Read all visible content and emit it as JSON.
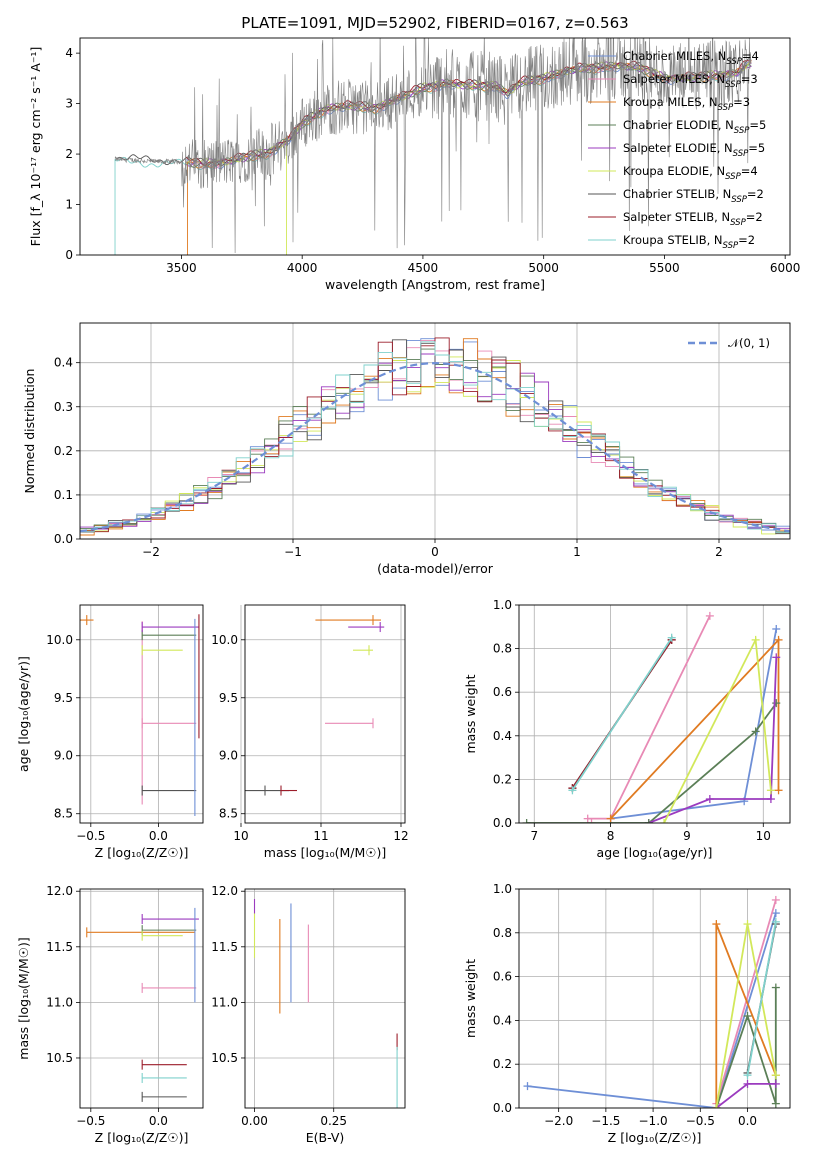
{
  "title": "PLATE=1091, MJD=52902, FIBERID=0167, z=0.563",
  "colors": [
    "#6e8fd6",
    "#e88ab5",
    "#e07b22",
    "#5b7f57",
    "#9b3bbf",
    "#d2e85a",
    "#555555",
    "#9b1d2a",
    "#7fd1cc"
  ],
  "legend_spectrum": [
    {
      "name": "Chabrier MILES, N",
      "sub": "SSP",
      "suffix": "=4"
    },
    {
      "name": "Salpeter MILES, N",
      "sub": "SSP",
      "suffix": "=3"
    },
    {
      "name": "Kroupa MILES, N",
      "sub": "SSP",
      "suffix": "=3"
    },
    {
      "name": "Chabrier ELODIE, N",
      "sub": "SSP",
      "suffix": "=5"
    },
    {
      "name": "Salpeter ELODIE, N",
      "sub": "SSP",
      "suffix": "=5"
    },
    {
      "name": "Kroupa ELODIE, N",
      "sub": "SSP",
      "suffix": "=4"
    },
    {
      "name": "Chabrier STELIB, N",
      "sub": "SSP",
      "suffix": "=2"
    },
    {
      "name": "Salpeter STELIB, N",
      "sub": "SSP",
      "suffix": "=2"
    },
    {
      "name": "Kroupa STELIB, N",
      "sub": "SSP",
      "suffix": "=2"
    }
  ],
  "legend_residual": "𝒩(0, 1)",
  "chart_data": [
    {
      "id": "spectrum",
      "type": "line",
      "xlabel": "wavelength [Angstrom, rest frame]",
      "ylabel": "Flux [f_λ 10⁻¹⁷ erg cm⁻² s⁻¹ A⁻¹]",
      "xlim": [
        3080,
        6020
      ],
      "ylim": [
        0,
        4.3
      ],
      "xticks": [
        3500,
        4000,
        4500,
        5000,
        5500,
        6000
      ],
      "yticks": [
        0,
        1,
        2,
        3,
        4
      ],
      "continuum": [
        [
          3225,
          1.9
        ],
        [
          3400,
          1.85
        ],
        [
          3500,
          1.85
        ],
        [
          3600,
          1.8
        ],
        [
          3700,
          1.85
        ],
        [
          3780,
          1.95
        ],
        [
          3850,
          2.0
        ],
        [
          3950,
          2.3
        ],
        [
          4000,
          2.6
        ],
        [
          4100,
          2.9
        ],
        [
          4200,
          2.95
        ],
        [
          4300,
          2.9
        ],
        [
          4400,
          3.1
        ],
        [
          4500,
          3.3
        ],
        [
          4600,
          3.4
        ],
        [
          4700,
          3.35
        ],
        [
          4800,
          3.35
        ],
        [
          4850,
          3.2
        ],
        [
          4900,
          3.4
        ],
        [
          5000,
          3.5
        ],
        [
          5100,
          3.65
        ],
        [
          5200,
          3.7
        ],
        [
          5300,
          3.75
        ],
        [
          5400,
          3.7
        ],
        [
          5500,
          3.5
        ],
        [
          5600,
          3.5
        ],
        [
          5700,
          3.55
        ],
        [
          5800,
          3.6
        ],
        [
          5850,
          3.8
        ]
      ]
    },
    {
      "id": "residual",
      "type": "area",
      "xlabel": "(data-model)/error",
      "ylabel": "Normed distribution",
      "xlim": [
        -2.5,
        2.5
      ],
      "ylim": [
        0,
        0.49
      ],
      "xticks": [
        -2,
        -1,
        0,
        1,
        2
      ],
      "yticks": [
        0.0,
        0.1,
        0.2,
        0.3,
        0.4
      ],
      "bin_width": 0.1,
      "gaussian": "N(0,1)"
    },
    {
      "id": "age_vs_Z",
      "type": "scatter",
      "xlabel": "Z [log₁₀(Z/Z☉)]",
      "ylabel": "age  [log₁₀(age/yr)]",
      "xlim": [
        -0.58,
        0.33
      ],
      "ylim": [
        8.42,
        10.3
      ],
      "xticks": [
        -0.5,
        0.0
      ],
      "yticks": [
        8.5,
        9.0,
        9.5,
        10.0
      ],
      "points": [
        {
          "series": 2,
          "x": -0.53,
          "y": 10.17,
          "xerr": [
            0.77,
            0.05
          ]
        },
        {
          "series": 1,
          "x": -0.12,
          "y": 9.28,
          "xerr": [
            0,
            0.4
          ],
          "yerr": [
            0.7,
            0.88
          ]
        },
        {
          "series": 3,
          "x": -0.12,
          "y": 10.04,
          "xerr": [
            0,
            0.4
          ]
        },
        {
          "series": 4,
          "x": -0.12,
          "y": 10.11,
          "xerr": [
            0,
            0.42
          ]
        },
        {
          "series": 5,
          "x": -0.12,
          "y": 9.91,
          "xerr": [
            0,
            0.3
          ]
        },
        {
          "series": 6,
          "x": -0.12,
          "y": 8.7,
          "xerr": [
            0,
            0.4
          ]
        },
        {
          "series": 0,
          "x": 0.27,
          "y": 10.14,
          "yerr": [
            1.66,
            0.04
          ]
        },
        {
          "series": 7,
          "x": 0.3,
          "y": 10.2,
          "yerr": [
            1.05,
            0.02
          ]
        }
      ]
    },
    {
      "id": "age_vs_mass",
      "type": "scatter",
      "xlabel": "mass [log₁₀(M/M☉)]",
      "ylabel": "",
      "xlim": [
        10.05,
        12.05
      ],
      "ylim": [
        8.42,
        10.3
      ],
      "xticks": [
        10,
        11,
        12
      ],
      "yticks": [
        8.5,
        9.0,
        9.5,
        10.0
      ],
      "points": [
        {
          "series": 2,
          "x": 11.65,
          "y": 10.17,
          "xerr": [
            0.72,
            0.1
          ]
        },
        {
          "series": 1,
          "x": 11.65,
          "y": 9.28,
          "xerr": [
            0.6,
            0
          ]
        },
        {
          "series": 4,
          "x": 11.74,
          "y": 10.11,
          "xerr": [
            0.4,
            0.05
          ]
        },
        {
          "series": 5,
          "x": 11.6,
          "y": 9.91,
          "xerr": [
            0.2,
            0.05
          ]
        },
        {
          "series": 6,
          "x": 10.3,
          "y": 8.7,
          "xerr": [
            0.3,
            0.3
          ]
        },
        {
          "series": 7,
          "x": 10.5,
          "y": 8.7,
          "xerr": [
            0,
            0.2
          ]
        }
      ]
    },
    {
      "id": "mass_weight_vs_age",
      "type": "line",
      "xlabel": "age  [log₁₀(age/yr)]",
      "ylabel": "mass weight",
      "xlim": [
        6.8,
        10.35
      ],
      "ylim": [
        0,
        1.0
      ],
      "xticks": [
        7,
        8,
        9,
        10
      ],
      "yticks": [
        0.0,
        0.2,
        0.4,
        0.6,
        0.8,
        1.0
      ],
      "series": [
        {
          "color": 0,
          "x": [
            8.0,
            9.75,
            10.17
          ],
          "y": [
            0.02,
            0.1,
            0.89
          ]
        },
        {
          "color": 1,
          "x": 7.75,
          "y": 0.0
        },
        {
          "color": 1,
          "x": [
            7.7,
            8.0,
            9.3
          ],
          "y": [
            0.02,
            0.02,
            0.95
          ]
        },
        {
          "color": 2,
          "x": [
            8.0,
            10.2,
            10.2
          ],
          "y": [
            0.02,
            0.84,
            0.15
          ]
        },
        {
          "color": 3,
          "x": [
            8.5,
            9.9,
            10.17
          ],
          "y": [
            0.0,
            0.42,
            0.55
          ]
        },
        {
          "color": 4,
          "x": [
            8.5,
            9.3,
            10.1,
            10.17
          ],
          "y": [
            0.0,
            0.11,
            0.11,
            0.76
          ]
        },
        {
          "color": 5,
          "x": [
            8.7,
            9.9,
            10.1
          ],
          "y": [
            0.0,
            0.84,
            0.15
          ]
        },
        {
          "color": 6,
          "x": [
            7.5,
            8.8
          ],
          "y": [
            0.16,
            0.84
          ]
        },
        {
          "color": 7,
          "x": [
            7.5,
            8.8
          ],
          "y": [
            0.16,
            0.84
          ]
        },
        {
          "color": 8,
          "x": [
            7.5,
            8.8
          ],
          "y": [
            0.15,
            0.85
          ]
        },
        {
          "color": 3,
          "x": [
            6.9,
            8.5
          ],
          "y": [
            0.0,
            0.0
          ]
        }
      ]
    },
    {
      "id": "mass_vs_Z",
      "type": "scatter",
      "xlabel": "Z [log₁₀(Z/Z☉)]",
      "ylabel": "mass [log₁₀(M/M☉)]",
      "xlim": [
        -0.58,
        0.33
      ],
      "ylim": [
        10.05,
        12.02
      ],
      "xticks": [
        -0.5,
        0.0
      ],
      "yticks": [
        10.5,
        11.0,
        11.5,
        12.0
      ],
      "points": [
        {
          "series": 2,
          "x": -0.53,
          "y": 11.63,
          "xerr": [
            0,
            0.8
          ]
        },
        {
          "series": 1,
          "x": -0.12,
          "y": 11.13,
          "xerr": [
            0,
            0.4
          ]
        },
        {
          "series": 3,
          "x": -0.12,
          "y": 11.65,
          "xerr": [
            0,
            0.4
          ]
        },
        {
          "series": 4,
          "x": -0.12,
          "y": 11.75,
          "xerr": [
            0,
            0.42
          ]
        },
        {
          "series": 5,
          "x": -0.12,
          "y": 11.6,
          "xerr": [
            0,
            0.3
          ]
        },
        {
          "series": 7,
          "x": -0.12,
          "y": 10.44,
          "xerr": [
            0,
            0.33
          ]
        },
        {
          "series": 8,
          "x": -0.12,
          "y": 10.32,
          "xerr": [
            0,
            0.33
          ]
        },
        {
          "series": 6,
          "x": -0.12,
          "y": 10.15,
          "xerr": [
            0,
            0.33
          ]
        },
        {
          "series": 0,
          "x": 0.27,
          "y": 11.5,
          "yerr": [
            0.5,
            0.35
          ]
        }
      ]
    },
    {
      "id": "mass_vs_ebv",
      "type": "scatter",
      "xlabel": "E(B-V)",
      "ylabel": "",
      "xlim": [
        -0.03,
        0.475
      ],
      "ylim": [
        10.05,
        12.02
      ],
      "xticks": [
        0.0,
        0.25
      ],
      "yticks": [
        10.5,
        11.0,
        11.5,
        12.0
      ],
      "points": [
        {
          "series": 5,
          "x": 0.0,
          "y": 11.6,
          "yerr": [
            0.2,
            0.2
          ]
        },
        {
          "series": 4,
          "x": 0.0,
          "y": 11.85,
          "yerr": [
            0.05,
            0.08
          ]
        },
        {
          "series": 2,
          "x": 0.08,
          "y": 11.3,
          "yerr": [
            0.4,
            0.45
          ]
        },
        {
          "series": 0,
          "x": 0.115,
          "y": 11.44,
          "yerr": [
            0.44,
            0.45
          ]
        },
        {
          "series": 1,
          "x": 0.17,
          "y": 11.3,
          "yerr": [
            0.3,
            0.4
          ]
        },
        {
          "series": 7,
          "x": 0.45,
          "y": 10.62,
          "yerr": [
            0.05,
            0.1
          ]
        },
        {
          "series": 8,
          "x": 0.45,
          "y": 10.35,
          "yerr": [
            0.3,
            0.25
          ]
        }
      ]
    },
    {
      "id": "mass_weight_vs_Z",
      "type": "line",
      "xlabel": "Z [log₁₀(Z/Z☉)]",
      "ylabel": "mass weight",
      "xlim": [
        -2.42,
        0.45
      ],
      "ylim": [
        0,
        1.0
      ],
      "xticks": [
        -2.0,
        -1.5,
        -1.0,
        -0.5,
        0.0
      ],
      "yticks": [
        0.0,
        0.2,
        0.4,
        0.6,
        0.8,
        1.0
      ],
      "series": [
        {
          "color": 0,
          "x": [
            -2.33,
            -0.33,
            0.3
          ],
          "y": [
            0.1,
            0.0,
            0.89
          ]
        },
        {
          "color": 1,
          "x": [
            -0.33,
            0.3
          ],
          "y": [
            0.02,
            0.95
          ]
        },
        {
          "color": 2,
          "x": [
            -0.33,
            -0.33,
            0.3
          ],
          "y": [
            0.0,
            0.84,
            0.15
          ]
        },
        {
          "color": 3,
          "x": [
            -0.33,
            0.0,
            0.3,
            0.3
          ],
          "y": [
            0.0,
            0.42,
            0.02,
            0.55
          ]
        },
        {
          "color": 4,
          "x": [
            -0.33,
            0.0,
            0.3
          ],
          "y": [
            0.0,
            0.11,
            0.11
          ]
        },
        {
          "color": 5,
          "x": [
            -0.33,
            0.0,
            0.3
          ],
          "y": [
            0.0,
            0.84,
            0.15
          ]
        },
        {
          "color": 6,
          "x": [
            0.0,
            0.3
          ],
          "y": [
            0.16,
            0.84
          ]
        },
        {
          "color": 8,
          "x": [
            0.0,
            0.3
          ],
          "y": [
            0.15,
            0.85
          ]
        }
      ]
    }
  ]
}
